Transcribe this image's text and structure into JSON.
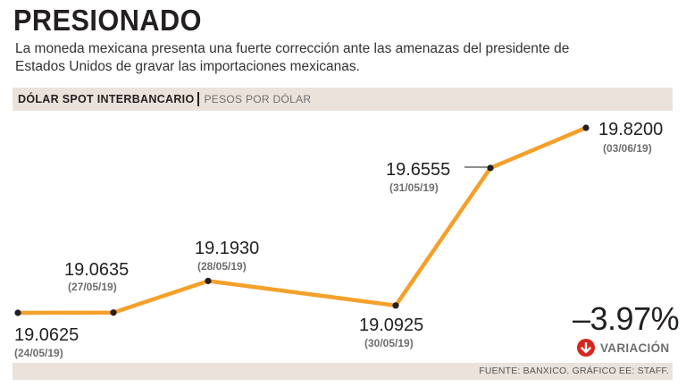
{
  "title": "PRESIONADO",
  "subtitle": "La moneda mexicana presenta una fuerte corrección ante las amenazas del presidente de Estados Unidos de gravar las importaciones mexicanas.",
  "header": {
    "main": "DÓLAR SPOT INTERBANCARIO",
    "unit": "PESOS POR DÓLAR"
  },
  "footer": {
    "source": "FUENTE: BANXICO. GRÁFICO EE: STAFF."
  },
  "variation": {
    "value": "–3.97%",
    "label": "VARIACIÓN",
    "icon": "down-arrow-icon",
    "icon_color": "#d7261e"
  },
  "colors": {
    "line": "#f4a02a",
    "point": "#231f20"
  },
  "chart_data": {
    "type": "line",
    "title": "DÓLAR SPOT INTERBANCARIO",
    "ylabel": "PESOS POR DÓLAR",
    "xlabel": "",
    "x": [
      "24/05/19",
      "27/05/19",
      "28/05/19",
      "30/05/19",
      "31/05/19",
      "03/06/19"
    ],
    "x_labels": [
      "(24/05/19)",
      "(27/05/19)",
      "(28/05/19)",
      "(30/05/19)",
      "(31/05/19)",
      "(03/06/19)"
    ],
    "values": [
      19.0625,
      19.0635,
      19.193,
      19.0925,
      19.6555,
      19.82
    ],
    "value_labels": [
      "19.0625",
      "19.0635",
      "19.1930",
      "19.0925",
      "19.6555",
      "19.8200"
    ],
    "grid": false,
    "legend": "none"
  }
}
